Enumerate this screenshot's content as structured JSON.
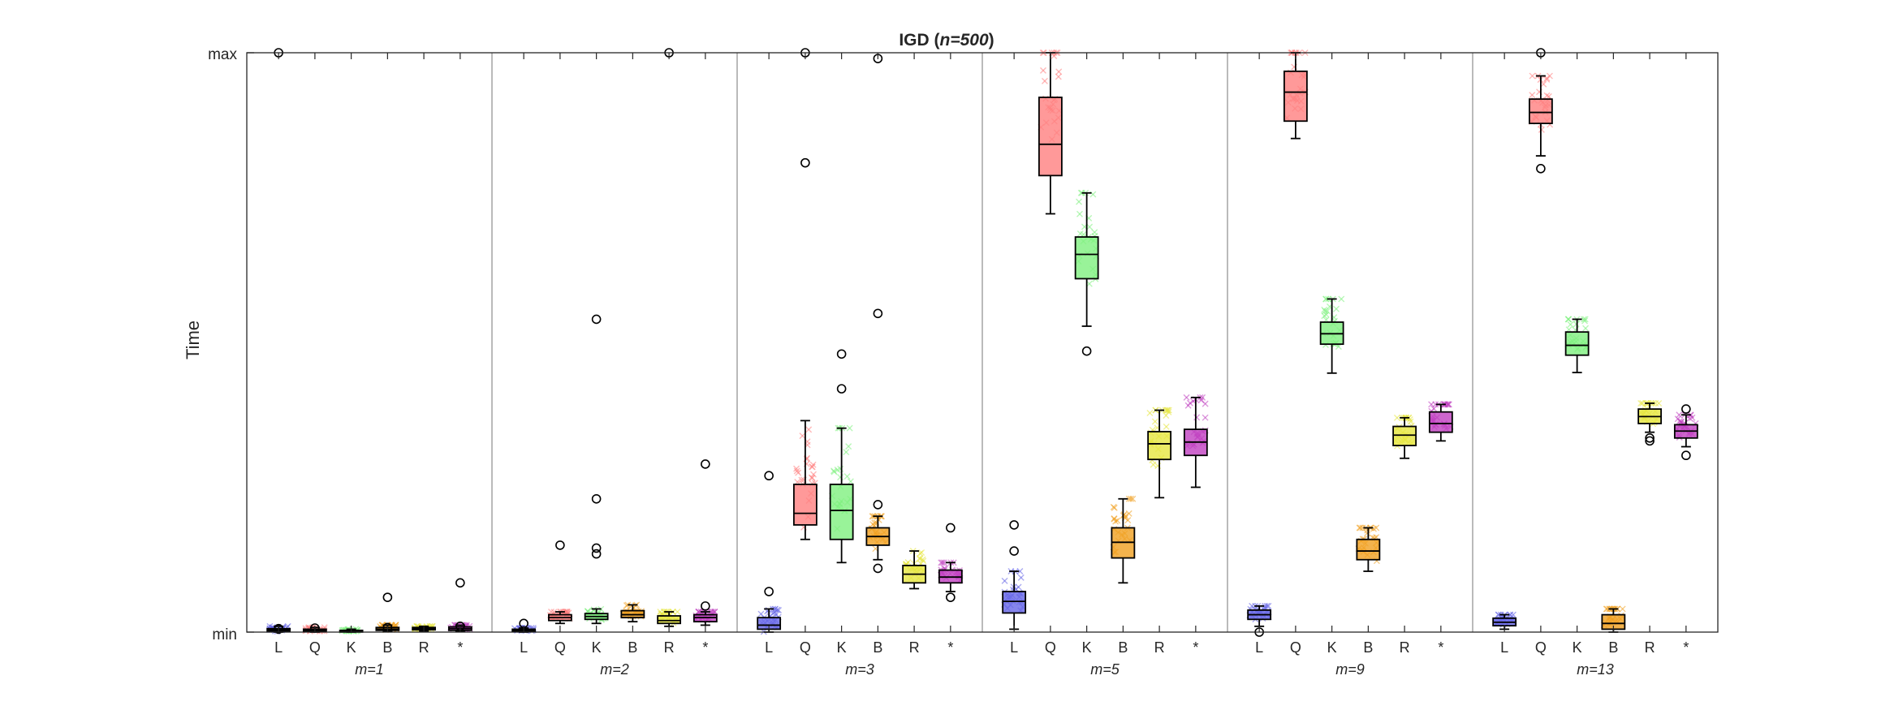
{
  "chart_data": {
    "type": "box",
    "title": "IGD (n=500)",
    "ylabel": "Time",
    "y_tick_labels": [
      "max",
      "min"
    ],
    "ylim": [
      0,
      1
    ],
    "categories": [
      "L",
      "Q",
      "K",
      "B",
      "R",
      "*"
    ],
    "colors": {
      "L": "#6666e6",
      "Q": "#ff8080",
      "K": "#80f080",
      "B": "#f0a020",
      "R": "#e6e640",
      "*": "#c040c0"
    },
    "panels": [
      {
        "label": "m=1",
        "boxes": [
          {
            "cat": "L",
            "q1": 0.002,
            "median": 0.004,
            "q3": 0.006,
            "lo": 0.0,
            "hi": 0.01,
            "out": [
              1.0,
              0.005,
              0.006
            ]
          },
          {
            "cat": "Q",
            "q1": 0.001,
            "median": 0.003,
            "q3": 0.005,
            "lo": 0.0,
            "hi": 0.008,
            "out": [
              0.007
            ]
          },
          {
            "cat": "K",
            "q1": 0.001,
            "median": 0.002,
            "q3": 0.003,
            "lo": 0.0,
            "hi": 0.005,
            "out": []
          },
          {
            "cat": "B",
            "q1": 0.003,
            "median": 0.005,
            "q3": 0.008,
            "lo": 0.001,
            "hi": 0.012,
            "out": [
              0.06,
              0.008
            ]
          },
          {
            "cat": "R",
            "q1": 0.004,
            "median": 0.006,
            "q3": 0.008,
            "lo": 0.002,
            "hi": 0.01,
            "out": []
          },
          {
            "cat": "*",
            "q1": 0.003,
            "median": 0.006,
            "q3": 0.009,
            "lo": 0.001,
            "hi": 0.012,
            "out": [
              0.085,
              0.01
            ]
          }
        ]
      },
      {
        "label": "m=2",
        "boxes": [
          {
            "cat": "L",
            "q1": 0.001,
            "median": 0.003,
            "q3": 0.005,
            "lo": 0.0,
            "hi": 0.007,
            "out": [
              0.015
            ]
          },
          {
            "cat": "Q",
            "q1": 0.02,
            "median": 0.025,
            "q3": 0.03,
            "lo": 0.015,
            "hi": 0.035,
            "out": [
              0.15
            ]
          },
          {
            "cat": "K",
            "q1": 0.022,
            "median": 0.027,
            "q3": 0.032,
            "lo": 0.015,
            "hi": 0.04,
            "out": [
              0.54,
              0.23,
              0.145,
              0.135
            ]
          },
          {
            "cat": "B",
            "q1": 0.025,
            "median": 0.03,
            "q3": 0.037,
            "lo": 0.018,
            "hi": 0.047,
            "out": []
          },
          {
            "cat": "R",
            "q1": 0.015,
            "median": 0.02,
            "q3": 0.028,
            "lo": 0.01,
            "hi": 0.035,
            "out": [
              1.0
            ]
          },
          {
            "cat": "*",
            "q1": 0.018,
            "median": 0.025,
            "q3": 0.03,
            "lo": 0.012,
            "hi": 0.035,
            "out": [
              0.29,
              0.045
            ]
          }
        ]
      },
      {
        "label": "m=3",
        "boxes": [
          {
            "cat": "L",
            "q1": 0.005,
            "median": 0.012,
            "q3": 0.025,
            "lo": 0.0,
            "hi": 0.04,
            "out": [
              0.27,
              0.07
            ]
          },
          {
            "cat": "Q",
            "q1": 0.185,
            "median": 0.205,
            "q3": 0.255,
            "lo": 0.16,
            "hi": 0.365,
            "out": [
              1.0,
              0.81
            ]
          },
          {
            "cat": "K",
            "q1": 0.16,
            "median": 0.21,
            "q3": 0.255,
            "lo": 0.12,
            "hi": 0.352,
            "out": [
              0.48,
              0.42
            ]
          },
          {
            "cat": "B",
            "q1": 0.15,
            "median": 0.165,
            "q3": 0.18,
            "lo": 0.125,
            "hi": 0.2,
            "out": [
              0.99,
              0.55,
              0.22,
              0.11
            ]
          },
          {
            "cat": "R",
            "q1": 0.085,
            "median": 0.1,
            "q3": 0.115,
            "lo": 0.075,
            "hi": 0.14,
            "out": []
          },
          {
            "cat": "*",
            "q1": 0.085,
            "median": 0.095,
            "q3": 0.107,
            "lo": 0.07,
            "hi": 0.12,
            "out": [
              0.18,
              0.06
            ]
          }
        ]
      },
      {
        "label": "m=5",
        "boxes": [
          {
            "cat": "L",
            "q1": 0.033,
            "median": 0.053,
            "q3": 0.07,
            "lo": 0.005,
            "hi": 0.105,
            "out": [
              0.185,
              0.14
            ]
          },
          {
            "cat": "Q",
            "q1": 0.788,
            "median": 0.842,
            "q3": 0.923,
            "lo": 0.722,
            "hi": 1.0,
            "out": []
          },
          {
            "cat": "K",
            "q1": 0.61,
            "median": 0.652,
            "q3": 0.682,
            "lo": 0.528,
            "hi": 0.758,
            "out": [
              0.485
            ]
          },
          {
            "cat": "B",
            "q1": 0.128,
            "median": 0.155,
            "q3": 0.18,
            "lo": 0.085,
            "hi": 0.23,
            "out": []
          },
          {
            "cat": "R",
            "q1": 0.298,
            "median": 0.325,
            "q3": 0.346,
            "lo": 0.232,
            "hi": 0.383,
            "out": []
          },
          {
            "cat": "*",
            "q1": 0.305,
            "median": 0.328,
            "q3": 0.35,
            "lo": 0.25,
            "hi": 0.405,
            "out": []
          }
        ]
      },
      {
        "label": "m=9",
        "boxes": [
          {
            "cat": "L",
            "q1": 0.022,
            "median": 0.03,
            "q3": 0.038,
            "lo": 0.01,
            "hi": 0.045,
            "out": [
              0.0
            ]
          },
          {
            "cat": "Q",
            "q1": 0.882,
            "median": 0.932,
            "q3": 0.968,
            "lo": 0.852,
            "hi": 1.0,
            "out": []
          },
          {
            "cat": "K",
            "q1": 0.497,
            "median": 0.515,
            "q3": 0.535,
            "lo": 0.447,
            "hi": 0.575,
            "out": []
          },
          {
            "cat": "B",
            "q1": 0.125,
            "median": 0.14,
            "q3": 0.16,
            "lo": 0.105,
            "hi": 0.18,
            "out": []
          },
          {
            "cat": "R",
            "q1": 0.322,
            "median": 0.34,
            "q3": 0.355,
            "lo": 0.3,
            "hi": 0.37,
            "out": []
          },
          {
            "cat": "*",
            "q1": 0.345,
            "median": 0.36,
            "q3": 0.38,
            "lo": 0.33,
            "hi": 0.393,
            "out": []
          }
        ]
      },
      {
        "label": "m=13",
        "boxes": [
          {
            "cat": "L",
            "q1": 0.011,
            "median": 0.017,
            "q3": 0.024,
            "lo": 0.005,
            "hi": 0.03,
            "out": []
          },
          {
            "cat": "Q",
            "q1": 0.878,
            "median": 0.897,
            "q3": 0.92,
            "lo": 0.822,
            "hi": 0.96,
            "out": [
              1.0,
              0.8
            ]
          },
          {
            "cat": "K",
            "q1": 0.478,
            "median": 0.495,
            "q3": 0.518,
            "lo": 0.448,
            "hi": 0.54,
            "out": []
          },
          {
            "cat": "B",
            "q1": 0.005,
            "median": 0.015,
            "q3": 0.03,
            "lo": 0.0,
            "hi": 0.04,
            "out": []
          },
          {
            "cat": "R",
            "q1": 0.36,
            "median": 0.372,
            "q3": 0.385,
            "lo": 0.345,
            "hi": 0.395,
            "out": [
              0.335,
              0.33
            ]
          },
          {
            "cat": "*",
            "q1": 0.335,
            "median": 0.347,
            "q3": 0.358,
            "lo": 0.32,
            "hi": 0.375,
            "out": [
              0.385,
              0.305
            ]
          }
        ]
      }
    ]
  }
}
